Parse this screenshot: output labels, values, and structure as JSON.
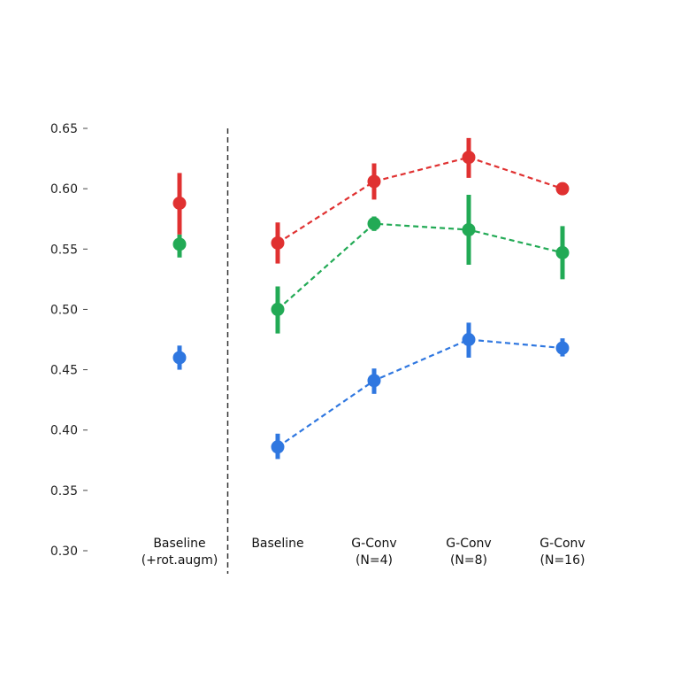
{
  "chart_data": {
    "type": "scatter",
    "title": "",
    "xlabel": "",
    "ylabel": "",
    "ylim": [
      0.3,
      0.65
    ],
    "yticks": [
      "0.30",
      "0.35",
      "0.40",
      "0.45",
      "0.50",
      "0.55",
      "0.60",
      "0.65"
    ],
    "grid": false,
    "categories": [
      [
        "Baseline",
        "(+rot.augm)"
      ],
      [
        "Baseline"
      ],
      [
        "G-Conv",
        "(N=4)"
      ],
      [
        "G-Conv",
        "(N=8)"
      ],
      [
        "G-Conv",
        "(N=16)"
      ]
    ],
    "separator_after_category": 0,
    "connected_from_category": 1,
    "series": [
      {
        "color": "#e03131",
        "values": [
          0.588,
          0.555,
          0.606,
          0.626,
          0.6
        ],
        "err_low": [
          0.562,
          0.538,
          0.591,
          0.609,
          0.597
        ],
        "err_high": [
          0.613,
          0.572,
          0.621,
          0.642,
          0.603
        ]
      },
      {
        "color": "#22aa55",
        "values": [
          0.554,
          0.5,
          0.571,
          0.566,
          0.547
        ],
        "err_low": [
          0.543,
          0.48,
          0.565,
          0.537,
          0.525
        ],
        "err_high": [
          0.562,
          0.519,
          0.577,
          0.595,
          0.569
        ]
      },
      {
        "color": "#2f77e0",
        "values": [
          0.46,
          0.386,
          0.441,
          0.475,
          0.468
        ],
        "err_low": [
          0.45,
          0.376,
          0.43,
          0.46,
          0.461
        ],
        "err_high": [
          0.47,
          0.397,
          0.451,
          0.489,
          0.476
        ]
      }
    ]
  }
}
